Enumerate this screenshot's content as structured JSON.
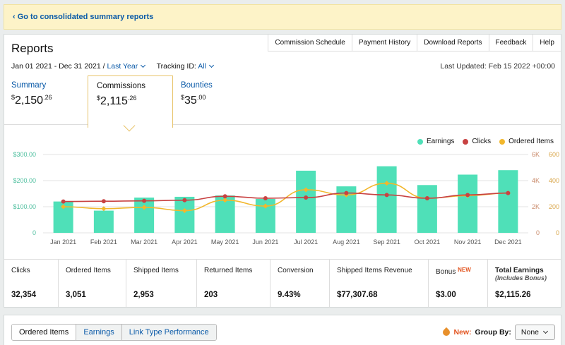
{
  "banner": {
    "back_link": "‹ Go to consolidated summary reports"
  },
  "header": {
    "title": "Reports",
    "nav": [
      "Commission Schedule",
      "Payment History",
      "Download Reports",
      "Feedback",
      "Help"
    ],
    "date_range": "Jan 01 2021 - Dec 31 2021 /",
    "period": "Last Year",
    "tracking_label": "Tracking ID:",
    "tracking_value": "All",
    "last_updated": "Last Updated: Feb 15 2022 +00:00"
  },
  "tabs": [
    {
      "label": "Summary",
      "currency": "$",
      "whole": "2,150",
      "cents": ".26"
    },
    {
      "label": "Commissions",
      "currency": "$",
      "whole": "2,115",
      "cents": ".26"
    },
    {
      "label": "Bounties",
      "currency": "$",
      "whole": "35",
      "cents": ".00"
    }
  ],
  "chart_data": {
    "type": "bar",
    "categories": [
      "Jan 2021",
      "Feb 2021",
      "Mar 2021",
      "Apr 2021",
      "May 2021",
      "Jun 2021",
      "Jul 2021",
      "Aug 2021",
      "Sep 2021",
      "Oct 2021",
      "Nov 2021",
      "Dec 2021"
    ],
    "legend_position": "top-right",
    "grid": true,
    "left_axis": {
      "ticks": [
        "$300.00",
        "$200.00",
        "$100.00",
        "0"
      ],
      "range": [
        0,
        300
      ]
    },
    "right_axis_clicks": {
      "ticks": [
        "6K",
        "4K",
        "2K",
        "0"
      ],
      "range": [
        0,
        6000
      ]
    },
    "right_axis_items": {
      "ticks": [
        "600",
        "400",
        "200",
        "0"
      ],
      "range": [
        0,
        600
      ]
    },
    "series": [
      {
        "name": "Earnings",
        "kind": "bar",
        "color": "#4fe0b8",
        "values": [
          120,
          85,
          135,
          138,
          143,
          130,
          238,
          178,
          255,
          183,
          223,
          240
        ]
      },
      {
        "name": "Clicks",
        "kind": "line",
        "color": "#c84242",
        "values": [
          2400,
          2420,
          2450,
          2500,
          2800,
          2650,
          2700,
          3050,
          2900,
          2650,
          2900,
          3050
        ]
      },
      {
        "name": "Ordered Items",
        "kind": "line",
        "color": "#f2b72c",
        "values": [
          200,
          185,
          195,
          170,
          250,
          205,
          330,
          290,
          380,
          265,
          285,
          305
        ]
      }
    ]
  },
  "stats": [
    {
      "label": "Clicks",
      "value": "32,354"
    },
    {
      "label": "Ordered Items",
      "value": "3,051"
    },
    {
      "label": "Shipped Items",
      "value": "2,953"
    },
    {
      "label": "Returned Items",
      "value": "203"
    },
    {
      "label": "Conversion",
      "value": "9.43%"
    },
    {
      "label": "Shipped Items Revenue",
      "value": "$77,307.68"
    },
    {
      "label": "Bonus",
      "badge": "NEW",
      "value": "$3.00"
    },
    {
      "label": "Total Earnings",
      "sublabel": "(Includes Bonus)",
      "value": "$2,115.26"
    }
  ],
  "bottom": {
    "tabs": [
      "Ordered Items",
      "Earnings",
      "Link Type Performance"
    ],
    "new_label": "New:",
    "group_by_label": "Group By:",
    "group_by_value": "None"
  },
  "colors": {
    "accent": "#0a5aa8",
    "banner": "#fdf3c8",
    "tab_border": "#e8c46b"
  }
}
